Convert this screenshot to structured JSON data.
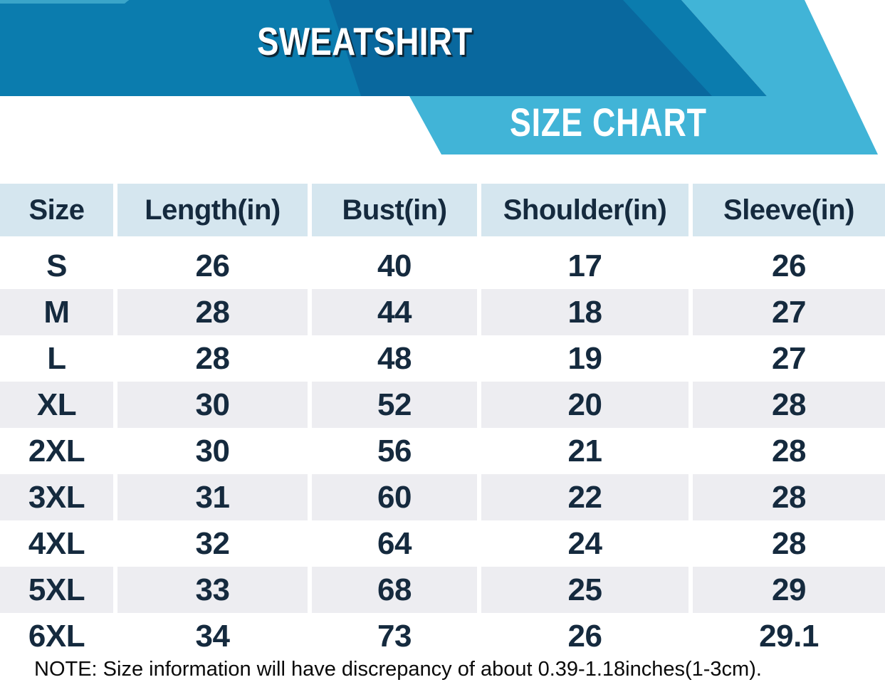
{
  "header": {
    "product_title": "SWEATSHIRT",
    "chart_title": "SIZE CHART"
  },
  "colors": {
    "banner_medium_blue": "#0b7cae",
    "banner_dark_blue": "#09689e",
    "banner_light_blue": "#41b4d7",
    "table_header_bg": "#d5e6ef",
    "table_alt_row_bg": "#ededf1",
    "table_text_navy": "#152a3e"
  },
  "chart_data": {
    "type": "table",
    "title": "SWEATSHIRT",
    "subtitle": "SIZE CHART",
    "unit": "inches",
    "columns": [
      "Size",
      "Length(in)",
      "Bust(in)",
      "Shoulder(in)",
      "Sleeve(in)"
    ],
    "rows": [
      [
        "S",
        "26",
        "40",
        "17",
        "26"
      ],
      [
        "M",
        "28",
        "44",
        "18",
        "27"
      ],
      [
        "L",
        "28",
        "48",
        "19",
        "27"
      ],
      [
        "XL",
        "30",
        "52",
        "20",
        "28"
      ],
      [
        "2XL",
        "30",
        "56",
        "21",
        "28"
      ],
      [
        "3XL",
        "31",
        "60",
        "22",
        "28"
      ],
      [
        "4XL",
        "32",
        "64",
        "24",
        "28"
      ],
      [
        "5XL",
        "33",
        "68",
        "25",
        "29"
      ],
      [
        "6XL",
        "34",
        "73",
        "26",
        "29.1"
      ]
    ]
  },
  "note": "NOTE: Size information will have discrepancy of about 0.39-1.18inches(1-3cm)."
}
